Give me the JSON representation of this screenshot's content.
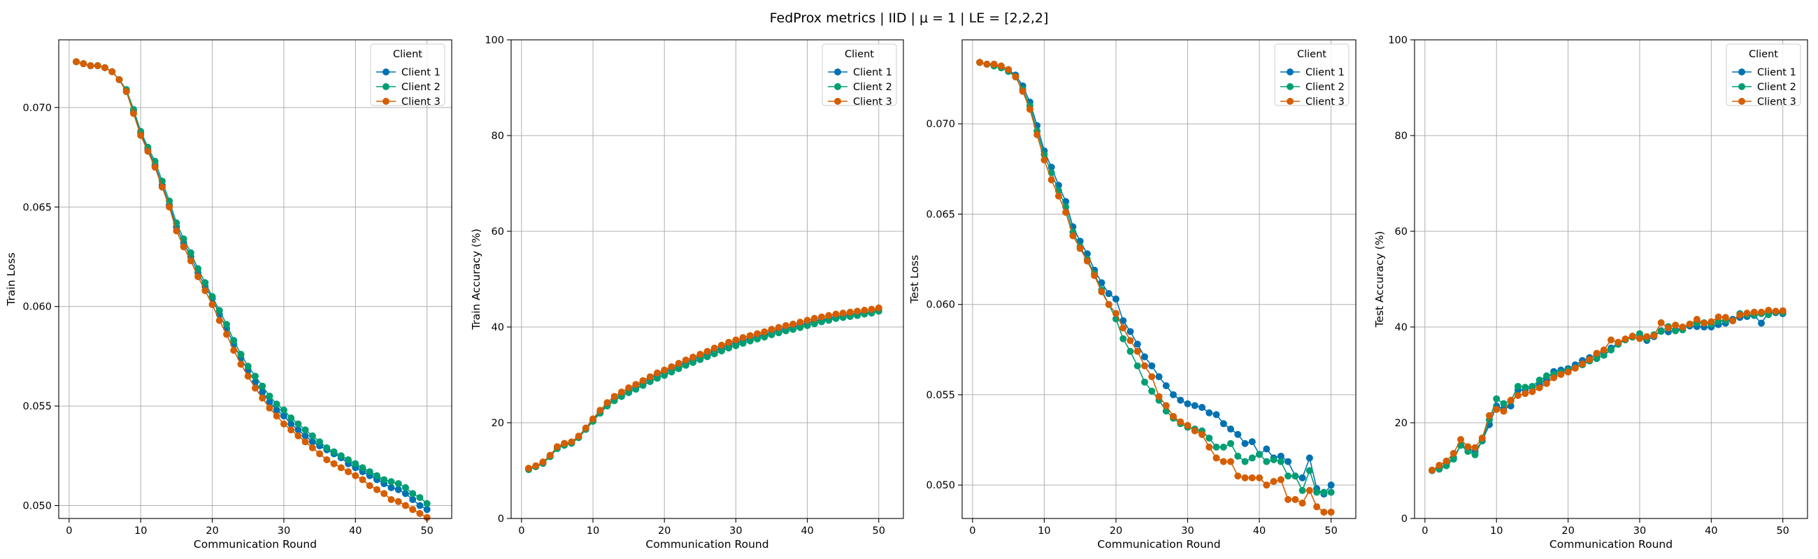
{
  "figure": {
    "title": "FedProx metrics | IID | μ = 1 | LE = [2,2,2]"
  },
  "chart_data": [
    {
      "type": "line",
      "title": "",
      "xlabel": "Communication Round",
      "ylabel": "Train Loss",
      "xlim": [
        -1.45,
        53.45
      ],
      "ylim": [
        0.04935,
        0.0734
      ],
      "xticks": [
        0,
        10,
        20,
        30,
        40,
        50
      ],
      "yticks": [
        0.05,
        0.055,
        0.06,
        0.065,
        0.07
      ],
      "ytick_labels": [
        "0.050",
        "0.055",
        "0.060",
        "0.065",
        "0.070"
      ],
      "grid": true,
      "legend": {
        "title": "Client",
        "placement": "upper right"
      },
      "x": [
        1,
        2,
        3,
        4,
        5,
        6,
        7,
        8,
        9,
        10,
        11,
        12,
        13,
        14,
        15,
        16,
        17,
        18,
        19,
        20,
        21,
        22,
        23,
        24,
        25,
        26,
        27,
        28,
        29,
        30,
        31,
        32,
        33,
        34,
        35,
        36,
        37,
        38,
        39,
        40,
        41,
        42,
        43,
        44,
        45,
        46,
        47,
        48,
        49,
        50
      ],
      "series": [
        {
          "name": "Client 1",
          "color": "#0072B2",
          "values": [
            0.0723,
            0.0722,
            0.0721,
            0.0721,
            0.072,
            0.0718,
            0.0714,
            0.0708,
            0.0698,
            0.0687,
            0.0679,
            0.0671,
            0.0661,
            0.0651,
            0.064,
            0.0632,
            0.0625,
            0.0617,
            0.061,
            0.0604,
            0.0596,
            0.0589,
            0.0581,
            0.0574,
            0.0568,
            0.0562,
            0.0557,
            0.0552,
            0.0548,
            0.0545,
            0.0541,
            0.0538,
            0.0535,
            0.0532,
            0.053,
            0.0528,
            0.0526,
            0.0524,
            0.0521,
            0.0519,
            0.0517,
            0.0515,
            0.0513,
            0.0511,
            0.0509,
            0.0508,
            0.0506,
            0.0503,
            0.05,
            0.0498
          ]
        },
        {
          "name": "Client 2",
          "color": "#009E73",
          "values": [
            0.0723,
            0.0722,
            0.0721,
            0.0721,
            0.072,
            0.0718,
            0.0714,
            0.0709,
            0.0699,
            0.0688,
            0.068,
            0.0673,
            0.0663,
            0.0653,
            0.0642,
            0.0634,
            0.0627,
            0.0619,
            0.0612,
            0.0605,
            0.0598,
            0.0591,
            0.0583,
            0.0576,
            0.057,
            0.0565,
            0.056,
            0.0555,
            0.0551,
            0.0548,
            0.0544,
            0.0541,
            0.0538,
            0.0535,
            0.0532,
            0.0529,
            0.0527,
            0.0525,
            0.0523,
            0.0521,
            0.0519,
            0.0517,
            0.0515,
            0.0513,
            0.0512,
            0.0511,
            0.0509,
            0.0506,
            0.0504,
            0.0501
          ]
        },
        {
          "name": "Client 3",
          "color": "#D55E00",
          "values": [
            0.0723,
            0.0722,
            0.0721,
            0.0721,
            0.072,
            0.0718,
            0.0714,
            0.0708,
            0.0697,
            0.0686,
            0.0678,
            0.067,
            0.066,
            0.065,
            0.0638,
            0.063,
            0.0623,
            0.0615,
            0.0608,
            0.0601,
            0.0593,
            0.0586,
            0.0578,
            0.0571,
            0.0565,
            0.0559,
            0.0554,
            0.0549,
            0.0545,
            0.0541,
            0.0538,
            0.0535,
            0.0532,
            0.0529,
            0.0526,
            0.0523,
            0.0521,
            0.0519,
            0.0517,
            0.0515,
            0.0513,
            0.051,
            0.0508,
            0.0506,
            0.0503,
            0.0502,
            0.05,
            0.0498,
            0.0496,
            0.0494
          ]
        }
      ]
    },
    {
      "type": "line",
      "title": "",
      "xlabel": "Communication Round",
      "ylabel": "Train Accuracy (%)",
      "xlim": [
        -1.45,
        53.45
      ],
      "ylim": [
        0,
        100
      ],
      "xticks": [
        0,
        10,
        20,
        30,
        40,
        50
      ],
      "yticks": [
        0,
        20,
        40,
        60,
        80,
        100
      ],
      "ytick_labels": [
        "0",
        "20",
        "40",
        "60",
        "80",
        "100"
      ],
      "grid": true,
      "legend": {
        "title": "Client",
        "placement": "upper right"
      },
      "x": [
        1,
        2,
        3,
        4,
        5,
        6,
        7,
        8,
        9,
        10,
        11,
        12,
        13,
        14,
        15,
        16,
        17,
        18,
        19,
        20,
        21,
        22,
        23,
        24,
        25,
        26,
        27,
        28,
        29,
        30,
        31,
        32,
        33,
        34,
        35,
        36,
        37,
        38,
        39,
        40,
        41,
        42,
        43,
        44,
        45,
        46,
        47,
        48,
        49,
        50
      ],
      "series": [
        {
          "name": "Client 1",
          "color": "#0072B2",
          "values": [
            10.3,
            10.9,
            11.6,
            13.0,
            14.8,
            15.5,
            15.8,
            17.0,
            18.7,
            20.5,
            22.2,
            23.8,
            25.0,
            25.9,
            26.8,
            27.6,
            28.4,
            29.2,
            30.0,
            30.6,
            31.2,
            31.9,
            32.6,
            33.2,
            33.8,
            34.4,
            35.0,
            35.6,
            36.2,
            36.7,
            37.2,
            37.6,
            38.0,
            38.4,
            38.9,
            39.3,
            39.7,
            40.0,
            40.4,
            40.8,
            41.2,
            41.5,
            41.8,
            42.2,
            42.4,
            42.6,
            42.8,
            43.0,
            43.2,
            43.6
          ]
        },
        {
          "name": "Client 2",
          "color": "#009E73",
          "values": [
            10.2,
            10.8,
            11.5,
            12.9,
            14.6,
            15.3,
            15.7,
            16.9,
            18.6,
            20.3,
            22.0,
            23.5,
            24.6,
            25.5,
            26.3,
            27.0,
            27.8,
            28.6,
            29.3,
            29.9,
            30.6,
            31.3,
            32.0,
            32.6,
            33.2,
            33.8,
            34.4,
            35.0,
            35.6,
            36.1,
            36.6,
            37.1,
            37.5,
            37.9,
            38.4,
            38.8,
            39.2,
            39.5,
            39.9,
            40.3,
            40.7,
            41.1,
            41.4,
            41.8,
            42.0,
            42.2,
            42.4,
            42.7,
            42.9,
            43.3
          ]
        },
        {
          "name": "Client 3",
          "color": "#D55E00",
          "values": [
            10.5,
            11.0,
            11.8,
            13.2,
            15.0,
            15.7,
            16.0,
            17.2,
            18.9,
            20.8,
            22.6,
            24.2,
            25.5,
            26.4,
            27.3,
            28.0,
            28.8,
            29.6,
            30.4,
            31.0,
            31.7,
            32.4,
            33.1,
            33.7,
            34.3,
            34.9,
            35.6,
            36.2,
            36.8,
            37.3,
            37.8,
            38.2,
            38.6,
            39.0,
            39.5,
            39.9,
            40.3,
            40.6,
            41.0,
            41.4,
            41.8,
            42.1,
            42.4,
            42.7,
            42.9,
            43.1,
            43.3,
            43.5,
            43.7,
            44.0
          ]
        }
      ]
    },
    {
      "type": "line",
      "title": "",
      "xlabel": "Communication Round",
      "ylabel": "Test Loss",
      "xlim": [
        -1.45,
        53.45
      ],
      "ylim": [
        0.04815,
        0.07465
      ],
      "xticks": [
        0,
        10,
        20,
        30,
        40,
        50
      ],
      "yticks": [
        0.05,
        0.055,
        0.06,
        0.065,
        0.07
      ],
      "ytick_labels": [
        "0.050",
        "0.055",
        "0.060",
        "0.065",
        "0.070"
      ],
      "grid": true,
      "legend": {
        "title": "Client",
        "placement": "upper right"
      },
      "x": [
        1,
        2,
        3,
        4,
        5,
        6,
        7,
        8,
        9,
        10,
        11,
        12,
        13,
        14,
        15,
        16,
        17,
        18,
        19,
        20,
        21,
        22,
        23,
        24,
        25,
        26,
        27,
        28,
        29,
        30,
        31,
        32,
        33,
        34,
        35,
        36,
        37,
        38,
        39,
        40,
        41,
        42,
        43,
        44,
        45,
        46,
        47,
        48,
        49,
        50
      ],
      "series": [
        {
          "name": "Client 1",
          "color": "#0072B2",
          "values": [
            0.0734,
            0.0733,
            0.0733,
            0.0732,
            0.073,
            0.0727,
            0.0721,
            0.0712,
            0.0699,
            0.0685,
            0.0676,
            0.0666,
            0.0657,
            0.0643,
            0.0635,
            0.0628,
            0.0619,
            0.0612,
            0.0606,
            0.0603,
            0.0591,
            0.0585,
            0.0578,
            0.0571,
            0.0566,
            0.056,
            0.0555,
            0.055,
            0.0547,
            0.0545,
            0.0544,
            0.0543,
            0.054,
            0.0539,
            0.0534,
            0.0531,
            0.0528,
            0.0523,
            0.0524,
            0.0517,
            0.052,
            0.0515,
            0.0516,
            0.0513,
            0.0505,
            0.0504,
            0.0515,
            0.0498,
            0.0495,
            0.05
          ]
        },
        {
          "name": "Client 2",
          "color": "#009E73",
          "values": [
            0.0734,
            0.0733,
            0.0732,
            0.0731,
            0.0729,
            0.0726,
            0.0719,
            0.071,
            0.0696,
            0.0683,
            0.0673,
            0.0663,
            0.0654,
            0.064,
            0.0632,
            0.0625,
            0.0617,
            0.0608,
            0.06,
            0.0592,
            0.0581,
            0.0574,
            0.0566,
            0.0557,
            0.0552,
            0.0547,
            0.0541,
            0.0537,
            0.0534,
            0.0532,
            0.0531,
            0.053,
            0.0526,
            0.0521,
            0.0521,
            0.0523,
            0.0516,
            0.0513,
            0.0515,
            0.0517,
            0.0513,
            0.0514,
            0.0513,
            0.0505,
            0.0505,
            0.0497,
            0.0508,
            0.0496,
            0.0496,
            0.0496
          ]
        },
        {
          "name": "Client 3",
          "color": "#D55E00",
          "values": [
            0.0734,
            0.0733,
            0.0733,
            0.0732,
            0.073,
            0.0726,
            0.0718,
            0.0708,
            0.0694,
            0.068,
            0.0669,
            0.066,
            0.0651,
            0.0638,
            0.0631,
            0.0624,
            0.0616,
            0.0607,
            0.06,
            0.0595,
            0.0587,
            0.058,
            0.0574,
            0.0566,
            0.056,
            0.0549,
            0.0544,
            0.0538,
            0.0535,
            0.0533,
            0.053,
            0.0528,
            0.0521,
            0.0515,
            0.0513,
            0.0513,
            0.0505,
            0.0504,
            0.0504,
            0.0504,
            0.05,
            0.0502,
            0.0503,
            0.0492,
            0.0492,
            0.049,
            0.0497,
            0.0488,
            0.0485,
            0.0485
          ]
        }
      ]
    },
    {
      "type": "line",
      "title": "",
      "xlabel": "Communication Round",
      "ylabel": "Test Accuracy (%)",
      "xlim": [
        -1.45,
        53.45
      ],
      "ylim": [
        0,
        100
      ],
      "xticks": [
        0,
        10,
        20,
        30,
        40,
        50
      ],
      "yticks": [
        0,
        20,
        40,
        60,
        80,
        100
      ],
      "ytick_labels": [
        "0",
        "20",
        "40",
        "60",
        "80",
        "100"
      ],
      "grid": true,
      "legend": {
        "title": "Client",
        "placement": "upper right"
      },
      "x": [
        1,
        2,
        3,
        4,
        5,
        6,
        7,
        8,
        9,
        10,
        11,
        12,
        13,
        14,
        15,
        16,
        17,
        18,
        19,
        20,
        21,
        22,
        23,
        24,
        25,
        26,
        27,
        28,
        29,
        30,
        31,
        32,
        33,
        34,
        35,
        36,
        37,
        38,
        39,
        40,
        41,
        42,
        43,
        44,
        45,
        46,
        47,
        48,
        49,
        50
      ],
      "series": [
        {
          "name": "Client 1",
          "color": "#0072B2",
          "values": [
            10.0,
            10.4,
            11.5,
            12.7,
            15.3,
            14.6,
            14.0,
            16.2,
            19.6,
            23.5,
            22.9,
            23.5,
            26.8,
            26.9,
            27.4,
            28.1,
            29.1,
            30.7,
            31.0,
            31.3,
            32.1,
            33.0,
            33.6,
            34.2,
            34.8,
            35.6,
            36.6,
            37.4,
            37.9,
            37.7,
            37.2,
            38.0,
            39.2,
            39.0,
            39.4,
            39.8,
            40.2,
            40.1,
            40.0,
            40.0,
            40.5,
            40.8,
            41.6,
            42.0,
            42.2,
            42.4,
            40.8,
            43.0,
            43.0,
            42.8
          ]
        },
        {
          "name": "Client 2",
          "color": "#009E73",
          "values": [
            10.1,
            10.3,
            11.0,
            12.4,
            15.3,
            14.0,
            13.3,
            16.3,
            20.6,
            25.0,
            24.0,
            24.6,
            27.6,
            27.4,
            27.6,
            28.9,
            29.8,
            30.1,
            30.5,
            31.0,
            31.5,
            32.1,
            32.9,
            33.4,
            34.1,
            35.2,
            36.4,
            37.3,
            37.9,
            38.6,
            37.6,
            38.4,
            39.1,
            40.1,
            39.2,
            39.4,
            40.6,
            40.8,
            40.9,
            40.6,
            41.2,
            41.4,
            41.3,
            42.8,
            42.6,
            42.5,
            42.8,
            42.6,
            43.2,
            43.0
          ]
        },
        {
          "name": "Client 3",
          "color": "#D55E00",
          "values": [
            10.1,
            11.1,
            12.0,
            13.6,
            16.5,
            15.0,
            14.8,
            16.8,
            21.5,
            22.8,
            22.4,
            24.7,
            25.7,
            26.1,
            26.5,
            27.3,
            28.2,
            29.4,
            30.1,
            30.6,
            31.4,
            32.3,
            33.2,
            34.5,
            35.2,
            37.3,
            36.8,
            37.5,
            38.1,
            37.6,
            38.0,
            38.2,
            40.9,
            39.8,
            40.4,
            40.0,
            40.6,
            41.6,
            40.8,
            41.1,
            42.1,
            42.0,
            41.3,
            42.5,
            42.9,
            43.1,
            43.1,
            43.5,
            43.3,
            43.4
          ]
        }
      ]
    }
  ]
}
